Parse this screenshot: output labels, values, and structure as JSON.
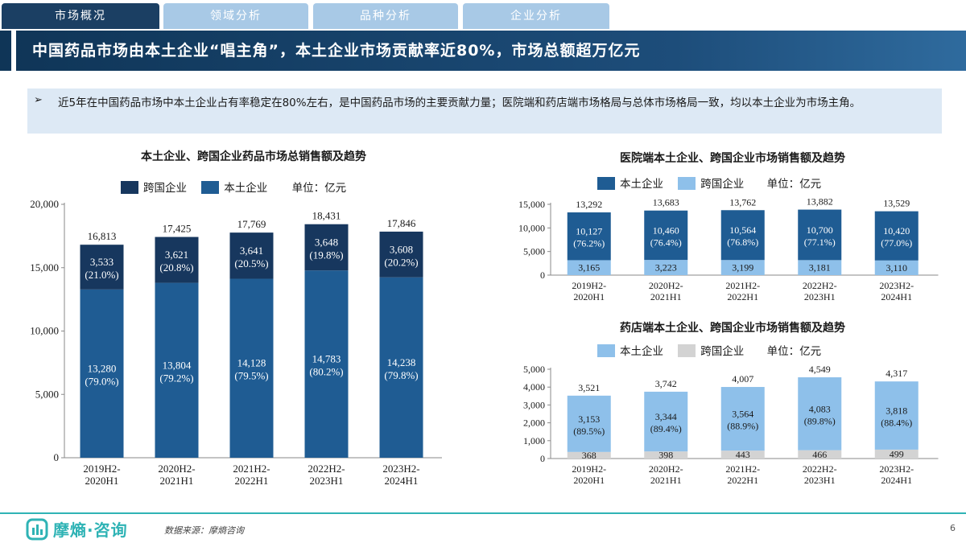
{
  "tabs": [
    {
      "label": "市场概况",
      "active": true
    },
    {
      "label": "领域分析",
      "active": false
    },
    {
      "label": "品种分析",
      "active": false
    },
    {
      "label": "企业分析",
      "active": false
    }
  ],
  "title": "中国药品市场由本土企业“唱主角”，本土企业市场贡献率近80%，市场总额超万亿元",
  "bullet": "近5年在中国药品市场中本土企业占有率稳定在80%左右，是中国药品市场的主要贡献力量；医院端和药店端市场格局与总体市场格局一致，均以本土企业为市场主角。",
  "colors": {
    "dark_navy": "#17375e",
    "mid_blue": "#1f5c93",
    "light_blue": "#8ec0ea",
    "grey": "#d3d3d3",
    "accent_teal": "#2fb3b5"
  },
  "legends": {
    "left": {
      "s1": "跨国企业",
      "s2": "本土企业",
      "unit": "单位：亿元"
    },
    "hospital": {
      "s1": "本土企业",
      "s2": "跨国企业",
      "unit": "单位：亿元"
    },
    "pharmacy": {
      "s1": "本土企业",
      "s2": "跨国企业",
      "unit": "单位：亿元"
    }
  },
  "chart_data": [
    {
      "type": "bar",
      "stacked": true,
      "title": "本土企业、跨国企业药品市场总销售额及趋势",
      "categories": [
        "2019H2-2020H1",
        "2020H2-2021H1",
        "2021H2-2022H1",
        "2022H2-2023H1",
        "2023H2-2024H1"
      ],
      "series": [
        {
          "name": "本土企业",
          "values": [
            13280,
            13804,
            14128,
            14783,
            14238
          ],
          "labels": [
            "13,280",
            "13,804",
            "14,128",
            "14,783",
            "14,238"
          ],
          "pct": [
            "(79.0%)",
            "(79.2%)",
            "(79.5%)",
            "(80.2%)",
            "(79.8%)"
          ],
          "color": "#1f5c93"
        },
        {
          "name": "跨国企业",
          "values": [
            3533,
            3621,
            3641,
            3648,
            3608
          ],
          "labels": [
            "3,533",
            "3,621",
            "3,641",
            "3,648",
            "3,608"
          ],
          "pct": [
            "(21.0%)",
            "(20.8%)",
            "(20.5%)",
            "(19.8%)",
            "(20.2%)"
          ],
          "color": "#17375e"
        }
      ],
      "totals": [
        "16,813",
        "17,425",
        "17,769",
        "18,431",
        "17,846"
      ],
      "ylim": [
        0,
        20000
      ],
      "yticks": [
        "0",
        "5,000",
        "10,000",
        "15,000",
        "20,000"
      ],
      "unit": "单位：亿元"
    },
    {
      "type": "bar",
      "stacked": true,
      "title": "医院端本土企业、跨国企业市场销售额及趋势",
      "categories": [
        "2019H2-2020H1",
        "2020H2-2021H1",
        "2021H2-2022H1",
        "2022H2-2023H1",
        "2023H2-2024H1"
      ],
      "series": [
        {
          "name": "跨国企业",
          "values": [
            3165,
            3223,
            3199,
            3181,
            3110
          ],
          "labels": [
            "3,165",
            "3,223",
            "3,199",
            "3,181",
            "3,110"
          ],
          "pct": [
            "",
            "",
            "",
            "",
            ""
          ],
          "color": "#8ec0ea"
        },
        {
          "name": "本土企业",
          "values": [
            10127,
            10460,
            10564,
            10700,
            10420
          ],
          "labels": [
            "10,127",
            "10,460",
            "10,564",
            "10,700",
            "10,420"
          ],
          "pct": [
            "(76.2%)",
            "(76.4%)",
            "(76.8%)",
            "(77.1%)",
            "(77.0%)"
          ],
          "color": "#1f5c93"
        }
      ],
      "totals": [
        "13,292",
        "13,683",
        "13,762",
        "13,882",
        "13,529"
      ],
      "ylim": [
        0,
        15000
      ],
      "yticks": [
        "0",
        "5,000",
        "10,000",
        "15,000"
      ],
      "unit": "单位：亿元"
    },
    {
      "type": "bar",
      "stacked": true,
      "title": "药店端本土企业、跨国企业市场销售额及趋势",
      "categories": [
        "2019H2-2020H1",
        "2020H2-2021H1",
        "2021H2-2022H1",
        "2022H2-2023H1",
        "2023H2-2024H1"
      ],
      "series": [
        {
          "name": "跨国企业",
          "values": [
            368,
            398,
            443,
            466,
            499
          ],
          "labels": [
            "368",
            "398",
            "443",
            "466",
            "499"
          ],
          "pct": [
            "",
            "",
            "",
            "",
            ""
          ],
          "color": "#d3d3d3"
        },
        {
          "name": "本土企业",
          "values": [
            3153,
            3344,
            3564,
            4083,
            3818
          ],
          "labels": [
            "3,153",
            "3,344",
            "3,564",
            "4,083",
            "3,818"
          ],
          "pct": [
            "(89.5%)",
            "(89.4%)",
            "(88.9%)",
            "(89.8%)",
            "(88.4%)"
          ],
          "color": "#8ec0ea"
        }
      ],
      "totals": [
        "3,521",
        "3,742",
        "4,007",
        "4,549",
        "4,317"
      ],
      "ylim": [
        0,
        5000
      ],
      "yticks": [
        "0",
        "1,000",
        "2,000",
        "3,000",
        "4,000",
        "5,000"
      ],
      "unit": "单位：亿元"
    }
  ],
  "footer": {
    "logo_text": "摩熵·咨询",
    "source": "数据来源：摩熵咨询",
    "page": "6"
  }
}
